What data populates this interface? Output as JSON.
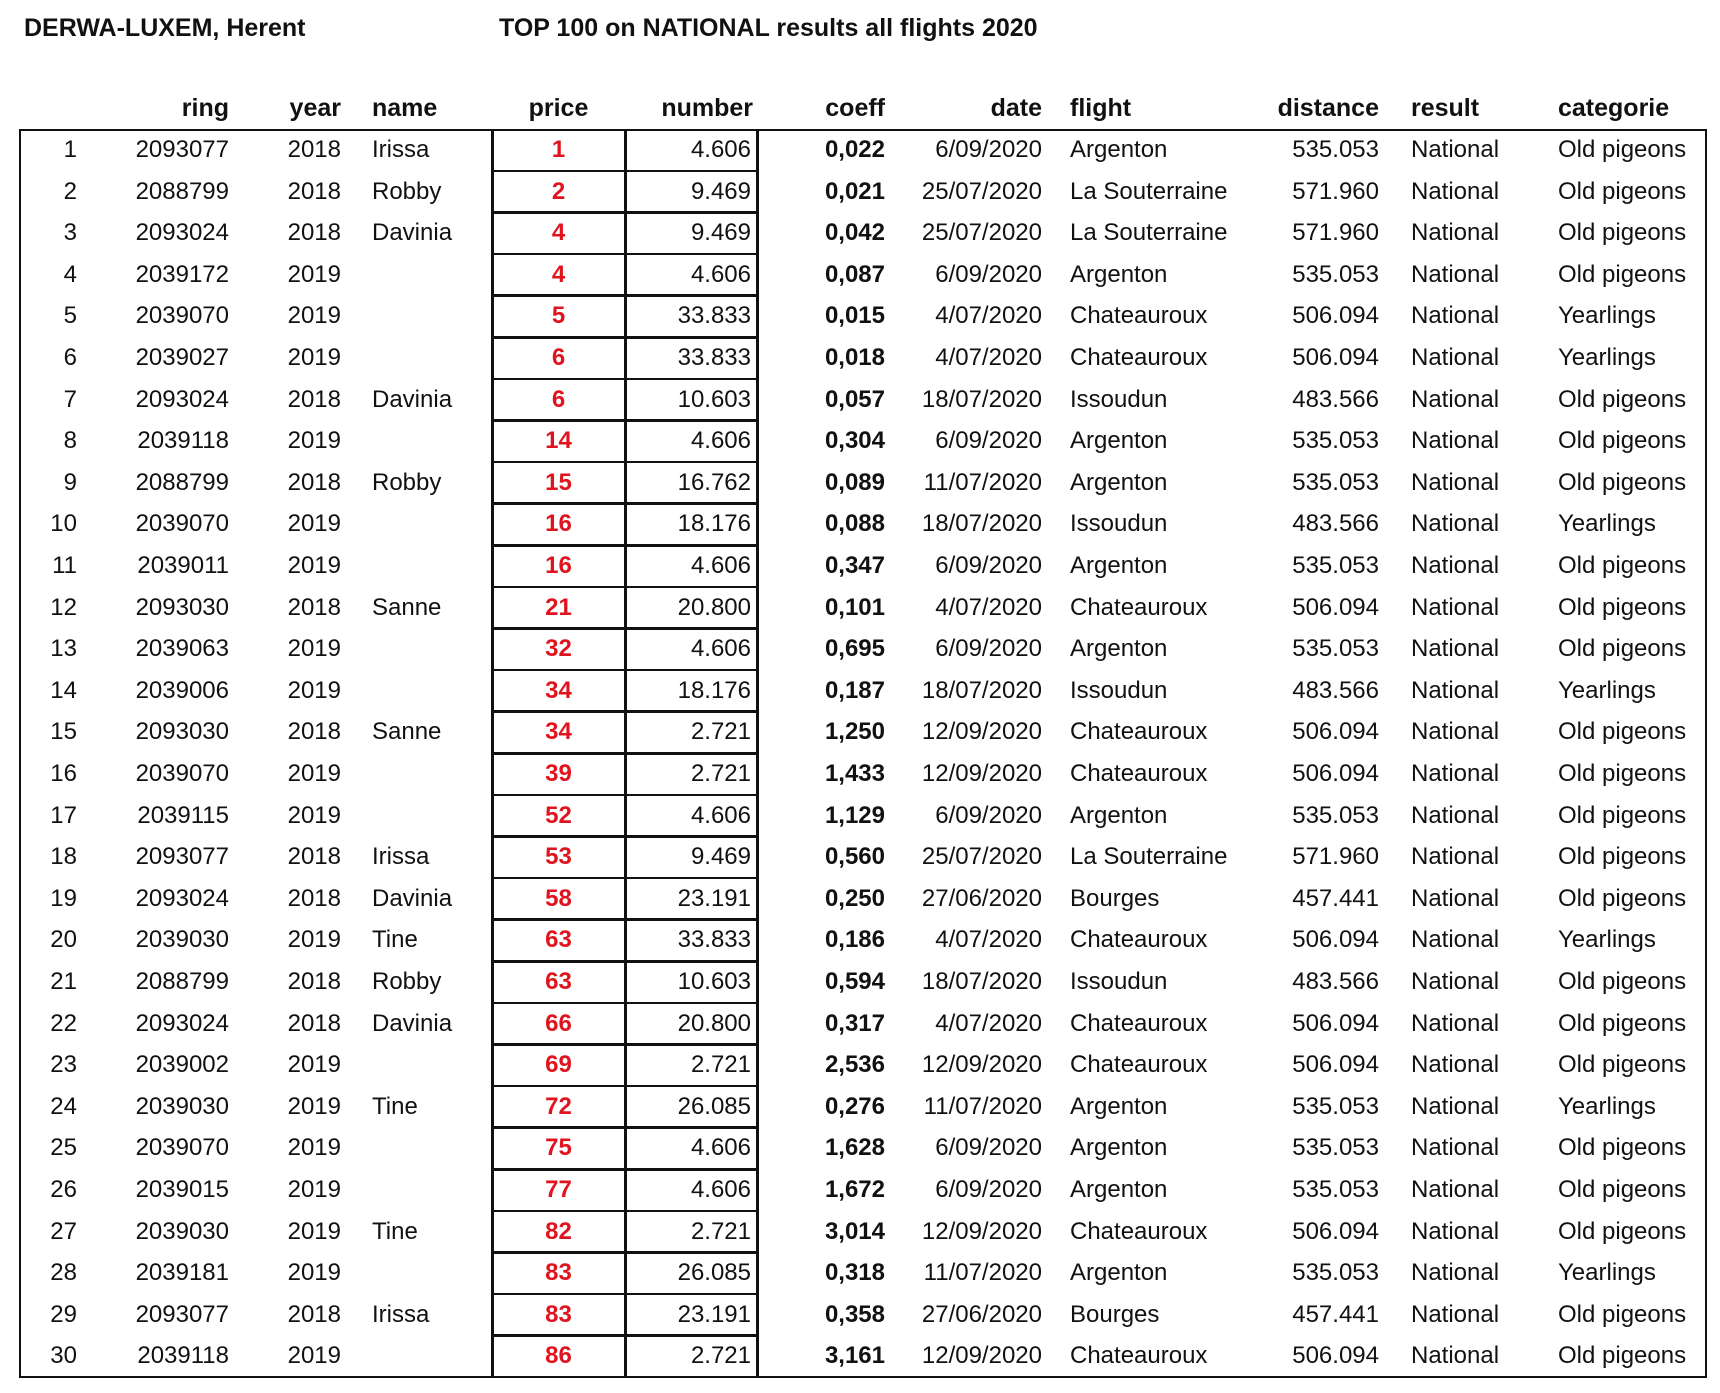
{
  "header": {
    "club": "DERWA-LUXEM, Herent",
    "report_title": "TOP 100 on NATIONAL results all flights 2020"
  },
  "colors": {
    "price": "#e0141e",
    "text": "#111111"
  },
  "columns": {
    "ring": "ring",
    "year": "year",
    "name": "name",
    "price": "price",
    "number": "number",
    "coeff": "coeff",
    "date": "date",
    "flight": "flight",
    "distance": "distance",
    "result": "result",
    "categorie": "categorie"
  },
  "rows": [
    [
      "1",
      "2093077",
      "2018",
      "Irissa",
      "1",
      "4.606",
      "0,022",
      "6/09/2020",
      "Argenton",
      "535.053",
      "National",
      "Old pigeons"
    ],
    [
      "2",
      "2088799",
      "2018",
      "Robby",
      "2",
      "9.469",
      "0,021",
      "25/07/2020",
      "La Souterraine",
      "571.960",
      "National",
      "Old pigeons"
    ],
    [
      "3",
      "2093024",
      "2018",
      "Davinia",
      "4",
      "9.469",
      "0,042",
      "25/07/2020",
      "La Souterraine",
      "571.960",
      "National",
      "Old pigeons"
    ],
    [
      "4",
      "2039172",
      "2019",
      "",
      "4",
      "4.606",
      "0,087",
      "6/09/2020",
      "Argenton",
      "535.053",
      "National",
      "Old pigeons"
    ],
    [
      "5",
      "2039070",
      "2019",
      "",
      "5",
      "33.833",
      "0,015",
      "4/07/2020",
      "Chateauroux",
      "506.094",
      "National",
      "Yearlings"
    ],
    [
      "6",
      "2039027",
      "2019",
      "",
      "6",
      "33.833",
      "0,018",
      "4/07/2020",
      "Chateauroux",
      "506.094",
      "National",
      "Yearlings"
    ],
    [
      "7",
      "2093024",
      "2018",
      "Davinia",
      "6",
      "10.603",
      "0,057",
      "18/07/2020",
      "Issoudun",
      "483.566",
      "National",
      "Old pigeons"
    ],
    [
      "8",
      "2039118",
      "2019",
      "",
      "14",
      "4.606",
      "0,304",
      "6/09/2020",
      "Argenton",
      "535.053",
      "National",
      "Old pigeons"
    ],
    [
      "9",
      "2088799",
      "2018",
      "Robby",
      "15",
      "16.762",
      "0,089",
      "11/07/2020",
      "Argenton",
      "535.053",
      "National",
      "Old pigeons"
    ],
    [
      "10",
      "2039070",
      "2019",
      "",
      "16",
      "18.176",
      "0,088",
      "18/07/2020",
      "Issoudun",
      "483.566",
      "National",
      "Yearlings"
    ],
    [
      "11",
      "2039011",
      "2019",
      "",
      "16",
      "4.606",
      "0,347",
      "6/09/2020",
      "Argenton",
      "535.053",
      "National",
      "Old pigeons"
    ],
    [
      "12",
      "2093030",
      "2018",
      "Sanne",
      "21",
      "20.800",
      "0,101",
      "4/07/2020",
      "Chateauroux",
      "506.094",
      "National",
      "Old pigeons"
    ],
    [
      "13",
      "2039063",
      "2019",
      "",
      "32",
      "4.606",
      "0,695",
      "6/09/2020",
      "Argenton",
      "535.053",
      "National",
      "Old pigeons"
    ],
    [
      "14",
      "2039006",
      "2019",
      "",
      "34",
      "18.176",
      "0,187",
      "18/07/2020",
      "Issoudun",
      "483.566",
      "National",
      "Yearlings"
    ],
    [
      "15",
      "2093030",
      "2018",
      "Sanne",
      "34",
      "2.721",
      "1,250",
      "12/09/2020",
      "Chateauroux",
      "506.094",
      "National",
      "Old pigeons"
    ],
    [
      "16",
      "2039070",
      "2019",
      "",
      "39",
      "2.721",
      "1,433",
      "12/09/2020",
      "Chateauroux",
      "506.094",
      "National",
      "Old pigeons"
    ],
    [
      "17",
      "2039115",
      "2019",
      "",
      "52",
      "4.606",
      "1,129",
      "6/09/2020",
      "Argenton",
      "535.053",
      "National",
      "Old pigeons"
    ],
    [
      "18",
      "2093077",
      "2018",
      "Irissa",
      "53",
      "9.469",
      "0,560",
      "25/07/2020",
      "La Souterraine",
      "571.960",
      "National",
      "Old pigeons"
    ],
    [
      "19",
      "2093024",
      "2018",
      "Davinia",
      "58",
      "23.191",
      "0,250",
      "27/06/2020",
      "Bourges",
      "457.441",
      "National",
      "Old pigeons"
    ],
    [
      "20",
      "2039030",
      "2019",
      "Tine",
      "63",
      "33.833",
      "0,186",
      "4/07/2020",
      "Chateauroux",
      "506.094",
      "National",
      "Yearlings"
    ],
    [
      "21",
      "2088799",
      "2018",
      "Robby",
      "63",
      "10.603",
      "0,594",
      "18/07/2020",
      "Issoudun",
      "483.566",
      "National",
      "Old pigeons"
    ],
    [
      "22",
      "2093024",
      "2018",
      "Davinia",
      "66",
      "20.800",
      "0,317",
      "4/07/2020",
      "Chateauroux",
      "506.094",
      "National",
      "Old pigeons"
    ],
    [
      "23",
      "2039002",
      "2019",
      "",
      "69",
      "2.721",
      "2,536",
      "12/09/2020",
      "Chateauroux",
      "506.094",
      "National",
      "Old pigeons"
    ],
    [
      "24",
      "2039030",
      "2019",
      "Tine",
      "72",
      "26.085",
      "0,276",
      "11/07/2020",
      "Argenton",
      "535.053",
      "National",
      "Yearlings"
    ],
    [
      "25",
      "2039070",
      "2019",
      "",
      "75",
      "4.606",
      "1,628",
      "6/09/2020",
      "Argenton",
      "535.053",
      "National",
      "Old pigeons"
    ],
    [
      "26",
      "2039015",
      "2019",
      "",
      "77",
      "4.606",
      "1,672",
      "6/09/2020",
      "Argenton",
      "535.053",
      "National",
      "Old pigeons"
    ],
    [
      "27",
      "2039030",
      "2019",
      "Tine",
      "82",
      "2.721",
      "3,014",
      "12/09/2020",
      "Chateauroux",
      "506.094",
      "National",
      "Old pigeons"
    ],
    [
      "28",
      "2039181",
      "2019",
      "",
      "83",
      "26.085",
      "0,318",
      "11/07/2020",
      "Argenton",
      "535.053",
      "National",
      "Yearlings"
    ],
    [
      "29",
      "2093077",
      "2018",
      "Irissa",
      "83",
      "23.191",
      "0,358",
      "27/06/2020",
      "Bourges",
      "457.441",
      "National",
      "Old pigeons"
    ],
    [
      "30",
      "2039118",
      "2019",
      "",
      "86",
      "2.721",
      "3,161",
      "12/09/2020",
      "Chateauroux",
      "506.094",
      "National",
      "Old pigeons"
    ]
  ]
}
